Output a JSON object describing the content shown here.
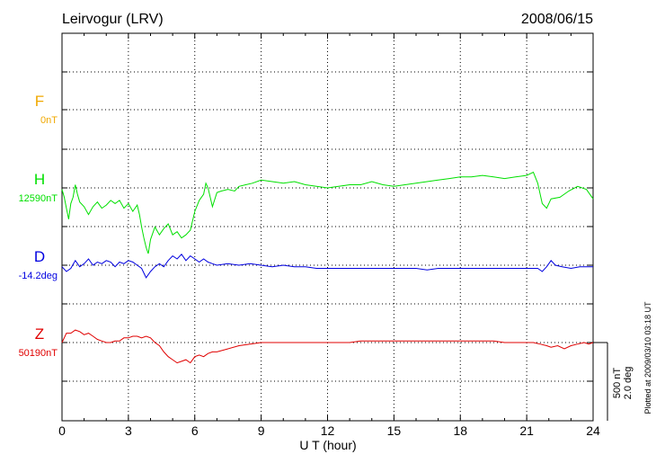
{
  "header": {
    "station": "Leirvogur (LRV)",
    "date": "2008/06/15"
  },
  "footer": {
    "plotted_note": "Plotted at 2009/03/10 03:18 UT"
  },
  "scale": {
    "nt_label": "500 nT",
    "deg_label": "2.0 deg",
    "scale_value_nt": 500,
    "scale_value_deg": 2.0
  },
  "colors": {
    "F": "#f0a800",
    "H": "#00e000",
    "D": "#0000e0",
    "Z": "#e00000",
    "axis": "#000000"
  },
  "chart_data": {
    "type": "line",
    "title": "",
    "xlabel": "U T (hour)",
    "ylabel": "",
    "xlim": [
      0,
      24
    ],
    "x_ticks": [
      0,
      3,
      6,
      9,
      12,
      15,
      18,
      21,
      24
    ],
    "x_tick_labels": [
      "0",
      "3",
      "6",
      "9",
      "12",
      "15",
      "18",
      "21",
      "24"
    ],
    "grid": true,
    "y_unit_per_scale_bar": "500 nT / 2.0 deg",
    "series": [
      {
        "name": "F",
        "baseline_label": "0nT",
        "color": "#f0a800",
        "points": []
      },
      {
        "name": "H",
        "baseline_label": "12590nT",
        "color": "#00e000",
        "points": [
          [
            0,
            -10
          ],
          [
            0.1,
            -60
          ],
          [
            0.2,
            -130
          ],
          [
            0.3,
            -200
          ],
          [
            0.4,
            -100
          ],
          [
            0.5,
            -60
          ],
          [
            0.6,
            20
          ],
          [
            0.7,
            -40
          ],
          [
            0.8,
            -90
          ],
          [
            1.0,
            -120
          ],
          [
            1.2,
            -170
          ],
          [
            1.4,
            -120
          ],
          [
            1.6,
            -90
          ],
          [
            1.8,
            -130
          ],
          [
            2.0,
            -110
          ],
          [
            2.2,
            -80
          ],
          [
            2.4,
            -100
          ],
          [
            2.6,
            -80
          ],
          [
            2.8,
            -130
          ],
          [
            3.0,
            -100
          ],
          [
            3.2,
            -150
          ],
          [
            3.4,
            -110
          ],
          [
            3.5,
            -170
          ],
          [
            3.6,
            -250
          ],
          [
            3.7,
            -320
          ],
          [
            3.8,
            -380
          ],
          [
            3.9,
            -420
          ],
          [
            4.0,
            -330
          ],
          [
            4.2,
            -250
          ],
          [
            4.4,
            -300
          ],
          [
            4.6,
            -260
          ],
          [
            4.8,
            -230
          ],
          [
            5.0,
            -300
          ],
          [
            5.2,
            -280
          ],
          [
            5.4,
            -320
          ],
          [
            5.6,
            -300
          ],
          [
            5.8,
            -270
          ],
          [
            6.0,
            -150
          ],
          [
            6.2,
            -80
          ],
          [
            6.4,
            -40
          ],
          [
            6.5,
            30
          ],
          [
            6.6,
            0
          ],
          [
            6.8,
            -120
          ],
          [
            7.0,
            -30
          ],
          [
            7.2,
            -20
          ],
          [
            7.5,
            -10
          ],
          [
            7.8,
            -20
          ],
          [
            8.0,
            10
          ],
          [
            8.3,
            20
          ],
          [
            8.6,
            30
          ],
          [
            9.0,
            50
          ],
          [
            9.5,
            40
          ],
          [
            10.0,
            30
          ],
          [
            10.5,
            40
          ],
          [
            11.0,
            20
          ],
          [
            11.5,
            10
          ],
          [
            12.0,
            0
          ],
          [
            12.5,
            10
          ],
          [
            13.0,
            20
          ],
          [
            13.5,
            20
          ],
          [
            14.0,
            40
          ],
          [
            14.5,
            20
          ],
          [
            15.0,
            10
          ],
          [
            15.5,
            20
          ],
          [
            16.0,
            30
          ],
          [
            16.5,
            40
          ],
          [
            17.0,
            50
          ],
          [
            17.5,
            60
          ],
          [
            18.0,
            70
          ],
          [
            18.5,
            70
          ],
          [
            19.0,
            80
          ],
          [
            19.5,
            70
          ],
          [
            20.0,
            60
          ],
          [
            20.5,
            70
          ],
          [
            21.0,
            80
          ],
          [
            21.3,
            100
          ],
          [
            21.5,
            30
          ],
          [
            21.7,
            -100
          ],
          [
            21.9,
            -130
          ],
          [
            22.1,
            -70
          ],
          [
            22.5,
            -60
          ],
          [
            22.9,
            -20
          ],
          [
            23.3,
            10
          ],
          [
            23.7,
            -10
          ],
          [
            24.0,
            -70
          ]
        ]
      },
      {
        "name": "D",
        "baseline_label": "-14.2deg",
        "color": "#0000e0",
        "points": [
          [
            0,
            -10
          ],
          [
            0.2,
            -40
          ],
          [
            0.4,
            -20
          ],
          [
            0.6,
            30
          ],
          [
            0.8,
            -10
          ],
          [
            1.0,
            10
          ],
          [
            1.2,
            40
          ],
          [
            1.4,
            0
          ],
          [
            1.6,
            20
          ],
          [
            1.8,
            10
          ],
          [
            2.0,
            30
          ],
          [
            2.2,
            20
          ],
          [
            2.4,
            -10
          ],
          [
            2.6,
            20
          ],
          [
            2.8,
            10
          ],
          [
            3.0,
            30
          ],
          [
            3.2,
            20
          ],
          [
            3.4,
            0
          ],
          [
            3.6,
            -20
          ],
          [
            3.8,
            -80
          ],
          [
            4.0,
            -40
          ],
          [
            4.2,
            -10
          ],
          [
            4.4,
            10
          ],
          [
            4.6,
            -10
          ],
          [
            4.8,
            30
          ],
          [
            5.0,
            60
          ],
          [
            5.2,
            40
          ],
          [
            5.4,
            70
          ],
          [
            5.6,
            30
          ],
          [
            5.8,
            60
          ],
          [
            6.0,
            40
          ],
          [
            6.2,
            20
          ],
          [
            6.4,
            40
          ],
          [
            6.6,
            20
          ],
          [
            6.8,
            10
          ],
          [
            7.0,
            0
          ],
          [
            7.5,
            10
          ],
          [
            8.0,
            0
          ],
          [
            8.5,
            10
          ],
          [
            9.0,
            0
          ],
          [
            9.5,
            -10
          ],
          [
            10,
            0
          ],
          [
            10.5,
            -10
          ],
          [
            11,
            -10
          ],
          [
            11.5,
            -20
          ],
          [
            12,
            -20
          ],
          [
            12.5,
            -20
          ],
          [
            13,
            -20
          ],
          [
            13.5,
            -20
          ],
          [
            14,
            -20
          ],
          [
            14.5,
            -20
          ],
          [
            15,
            -20
          ],
          [
            15.5,
            -20
          ],
          [
            16,
            -20
          ],
          [
            16.5,
            -30
          ],
          [
            17,
            -20
          ],
          [
            17.5,
            -20
          ],
          [
            18,
            -20
          ],
          [
            18.5,
            -20
          ],
          [
            19,
            -20
          ],
          [
            19.5,
            -20
          ],
          [
            20,
            -20
          ],
          [
            20.5,
            -20
          ],
          [
            21,
            -20
          ],
          [
            21.5,
            -20
          ],
          [
            21.7,
            -40
          ],
          [
            21.9,
            -10
          ],
          [
            22.1,
            30
          ],
          [
            22.3,
            0
          ],
          [
            22.6,
            -10
          ],
          [
            23.0,
            -20
          ],
          [
            23.4,
            -10
          ],
          [
            23.8,
            -10
          ],
          [
            24.0,
            -10
          ]
        ]
      },
      {
        "name": "Z",
        "baseline_label": "50190nT",
        "color": "#e00000",
        "points": [
          [
            0,
            0
          ],
          [
            0.2,
            60
          ],
          [
            0.4,
            60
          ],
          [
            0.6,
            80
          ],
          [
            0.8,
            70
          ],
          [
            1.0,
            50
          ],
          [
            1.2,
            60
          ],
          [
            1.4,
            40
          ],
          [
            1.6,
            20
          ],
          [
            1.8,
            10
          ],
          [
            2.0,
            0
          ],
          [
            2.2,
            0
          ],
          [
            2.4,
            10
          ],
          [
            2.6,
            10
          ],
          [
            2.8,
            30
          ],
          [
            3.0,
            30
          ],
          [
            3.2,
            40
          ],
          [
            3.4,
            40
          ],
          [
            3.6,
            30
          ],
          [
            3.8,
            40
          ],
          [
            4.0,
            30
          ],
          [
            4.2,
            0
          ],
          [
            4.4,
            -20
          ],
          [
            4.6,
            -60
          ],
          [
            4.8,
            -90
          ],
          [
            5.0,
            -110
          ],
          [
            5.2,
            -130
          ],
          [
            5.4,
            -120
          ],
          [
            5.6,
            -110
          ],
          [
            5.8,
            -130
          ],
          [
            6.0,
            -90
          ],
          [
            6.2,
            -80
          ],
          [
            6.4,
            -90
          ],
          [
            6.6,
            -70
          ],
          [
            6.8,
            -60
          ],
          [
            7.0,
            -60
          ],
          [
            7.5,
            -40
          ],
          [
            8.0,
            -20
          ],
          [
            8.5,
            -10
          ],
          [
            9.0,
            0
          ],
          [
            9.5,
            0
          ],
          [
            10,
            0
          ],
          [
            10.5,
            0
          ],
          [
            11,
            0
          ],
          [
            11.5,
            0
          ],
          [
            12,
            0
          ],
          [
            12.5,
            0
          ],
          [
            13,
            0
          ],
          [
            13.5,
            10
          ],
          [
            14,
            10
          ],
          [
            14.5,
            10
          ],
          [
            15,
            10
          ],
          [
            15.5,
            10
          ],
          [
            16,
            10
          ],
          [
            16.5,
            10
          ],
          [
            17,
            10
          ],
          [
            17.5,
            10
          ],
          [
            18,
            10
          ],
          [
            18.5,
            10
          ],
          [
            19,
            10
          ],
          [
            19.5,
            10
          ],
          [
            20,
            0
          ],
          [
            20.5,
            0
          ],
          [
            21,
            0
          ],
          [
            21.3,
            0
          ],
          [
            21.6,
            -10
          ],
          [
            21.9,
            -20
          ],
          [
            22.1,
            -30
          ],
          [
            22.4,
            -20
          ],
          [
            22.7,
            -40
          ],
          [
            23.0,
            -20
          ],
          [
            23.3,
            -10
          ],
          [
            23.6,
            0
          ],
          [
            23.8,
            -10
          ],
          [
            24.0,
            0
          ]
        ]
      }
    ]
  }
}
